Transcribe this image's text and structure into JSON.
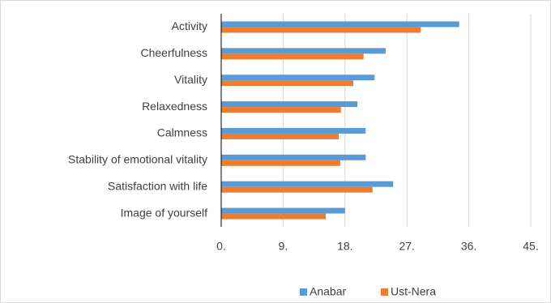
{
  "chart_data": {
    "type": "bar",
    "orientation": "horizontal",
    "categories": [
      "Activity",
      "Cheerfulness",
      "Vitality",
      "Relaxedness",
      "Calmness",
      "Stability of emotional vitality",
      "Satisfaction with life",
      "Image of yourself"
    ],
    "series": [
      {
        "name": "Anabar",
        "color": "#5b9bd5",
        "values": [
          34.6,
          23.9,
          22.3,
          19.8,
          21.0,
          21.0,
          25.0,
          18.0
        ]
      },
      {
        "name": "Ust-Nera",
        "color": "#ed7d31",
        "values": [
          29.0,
          20.7,
          19.2,
          17.4,
          17.1,
          17.3,
          22.0,
          15.2
        ]
      }
    ],
    "xlim": [
      0,
      45
    ],
    "xticks": [
      {
        "value": 0,
        "label": "0."
      },
      {
        "value": 9,
        "label": "9."
      },
      {
        "value": 18,
        "label": "18."
      },
      {
        "value": 27,
        "label": "27."
      },
      {
        "value": 36,
        "label": "36."
      },
      {
        "value": 45,
        "label": "45."
      }
    ],
    "grid": true,
    "legend": "bottom"
  }
}
